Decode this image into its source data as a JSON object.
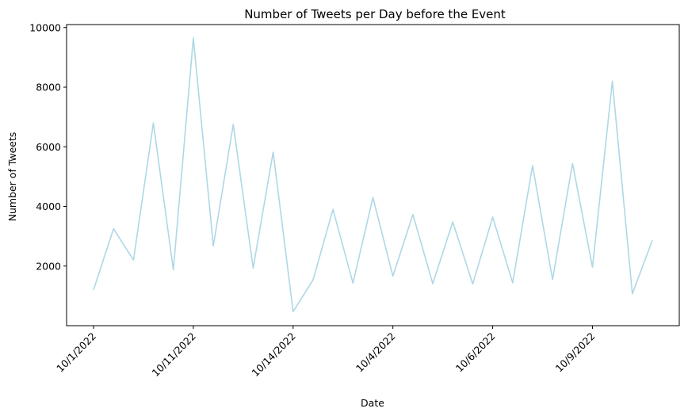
{
  "chart_data": {
    "type": "line",
    "title": "Number of Tweets per Day before the Event",
    "xlabel": "Date",
    "ylabel": "Number of Tweets",
    "line_color": "#add8e6",
    "x_tick_labels": [
      "10/1/2022",
      "10/11/2022",
      "10/14/2022",
      "10/4/2022",
      "10/6/2022",
      "10/9/2022"
    ],
    "x_tick_indices": [
      0,
      5,
      10,
      15,
      20,
      25
    ],
    "y_ticks": [
      2000,
      4000,
      6000,
      8000,
      10000
    ],
    "ylim": [
      0,
      10100
    ],
    "grid": false,
    "values": [
      1200,
      3250,
      2200,
      6800,
      1870,
      9650,
      2680,
      6750,
      1930,
      5820,
      470,
      1540,
      3900,
      1430,
      4300,
      1660,
      3730,
      1410,
      3480,
      1400,
      3640,
      1440,
      5370,
      1550,
      5440,
      1960,
      8200,
      1070,
      2860
    ]
  }
}
